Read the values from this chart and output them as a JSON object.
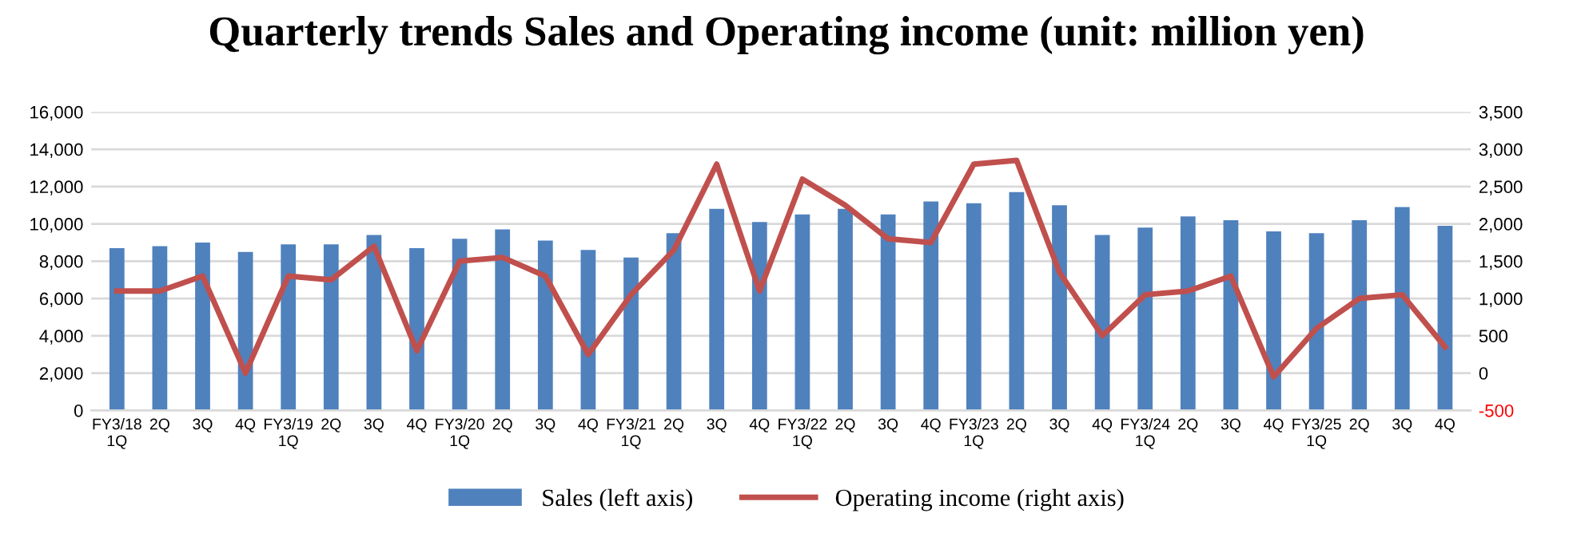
{
  "chart_data": {
    "type": "bar",
    "title": "Quarterly trends Sales and Operating income (unit: million yen)",
    "categories": [
      "FY3/18\n1Q",
      "2Q",
      "3Q",
      "4Q",
      "FY3/19\n1Q",
      "2Q",
      "3Q",
      "4Q",
      "FY3/20\n1Q",
      "2Q",
      "3Q",
      "4Q",
      "FY3/21\n1Q",
      "2Q",
      "3Q",
      "4Q",
      "FY3/22\n1Q",
      "2Q",
      "3Q",
      "4Q",
      "FY3/23\n1Q",
      "2Q",
      "3Q",
      "4Q",
      "FY3/24\n1Q",
      "2Q",
      "3Q",
      "4Q",
      "FY3/25\n1Q",
      "2Q",
      "3Q",
      "4Q"
    ],
    "series": [
      {
        "name": "Sales (left axis)",
        "color": "#4f81bd",
        "values": [
          8700,
          8800,
          9000,
          8500,
          8900,
          8900,
          9400,
          8700,
          9200,
          9700,
          9100,
          8600,
          8200,
          9500,
          10800,
          10100,
          10500,
          10800,
          10500,
          11200,
          11100,
          11700,
          11000,
          9400,
          9800,
          10400,
          10200,
          9600,
          9500,
          10200,
          10900,
          9900
        ]
      },
      {
        "name": "Operating income (right axis)",
        "type": "line",
        "axis": "y2",
        "color": "#c0504d",
        "values": [
          1100,
          1100,
          1300,
          0,
          1300,
          1250,
          1700,
          300,
          1500,
          1550,
          1300,
          250,
          1050,
          1650,
          2800,
          1100,
          2600,
          2250,
          1800,
          1750,
          2800,
          2850,
          1350,
          500,
          1050,
          1100,
          1300,
          -50,
          600,
          1000,
          1050,
          350
        ]
      }
    ],
    "ylim": [
      0,
      16000
    ],
    "yticks": [
      {
        "value": 0,
        "label": "0"
      },
      {
        "value": 2000,
        "label": "2,000"
      },
      {
        "value": 4000,
        "label": "4,000"
      },
      {
        "value": 6000,
        "label": "6,000"
      },
      {
        "value": 8000,
        "label": "8,000"
      },
      {
        "value": 10000,
        "label": "10,000"
      },
      {
        "value": 12000,
        "label": "12,000"
      },
      {
        "value": 14000,
        "label": "14,000"
      },
      {
        "value": 16000,
        "label": "16,000"
      }
    ],
    "y2lim": [
      -500,
      3500
    ],
    "y2ticks": [
      {
        "value": -500,
        "label": "-500"
      },
      0,
      500,
      {
        "value": 1000,
        "label": "1,000"
      },
      {
        "value": 1500,
        "label": "1,500"
      },
      {
        "value": 2000,
        "label": "2,000"
      },
      {
        "value": 2500,
        "label": "2,500"
      },
      {
        "value": 3000,
        "label": "3,000"
      },
      {
        "value": 3500,
        "label": "3,500"
      }
    ],
    "grid": "y",
    "legend": "bottom",
    "marker": "none",
    "line_style": "solid"
  }
}
